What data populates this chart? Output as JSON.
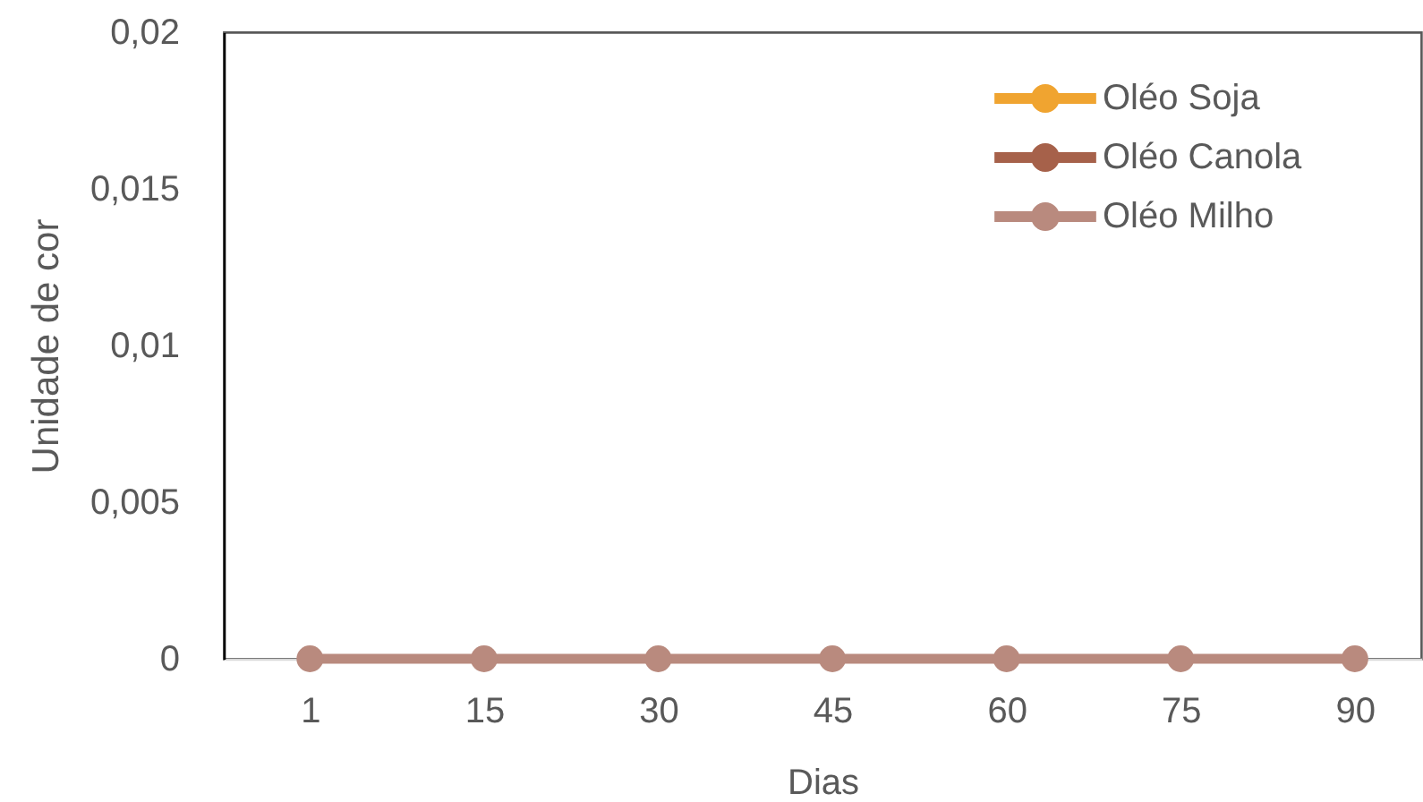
{
  "chart_data": {
    "type": "line",
    "xlabel": "Dias",
    "ylabel": "Unidade de cor",
    "categories": [
      "1",
      "15",
      "30",
      "45",
      "60",
      "75",
      "90"
    ],
    "series": [
      {
        "name": "Oléo Soja",
        "color": "#f0a430",
        "values": [
          null,
          null,
          null,
          null,
          null,
          null,
          null
        ]
      },
      {
        "name": "Oléo Canola",
        "color": "#a6614a",
        "values": [
          null,
          null,
          null,
          null,
          null,
          null,
          null
        ]
      },
      {
        "name": "Oléo Milho",
        "color": "#b98a7e",
        "values": [
          0,
          0,
          0,
          0,
          0,
          0,
          0
        ]
      }
    ],
    "ylim": [
      0,
      0.02
    ],
    "yticks": [
      0,
      {
        "value": 0.005,
        "label": "0,005"
      },
      {
        "value": 0.01,
        "label": "0,01"
      },
      {
        "value": 0.015,
        "label": "0,015"
      },
      {
        "value": 0.02,
        "label": "0,02"
      }
    ],
    "legend": "top right",
    "marker": "circle",
    "line_style": "solid"
  }
}
